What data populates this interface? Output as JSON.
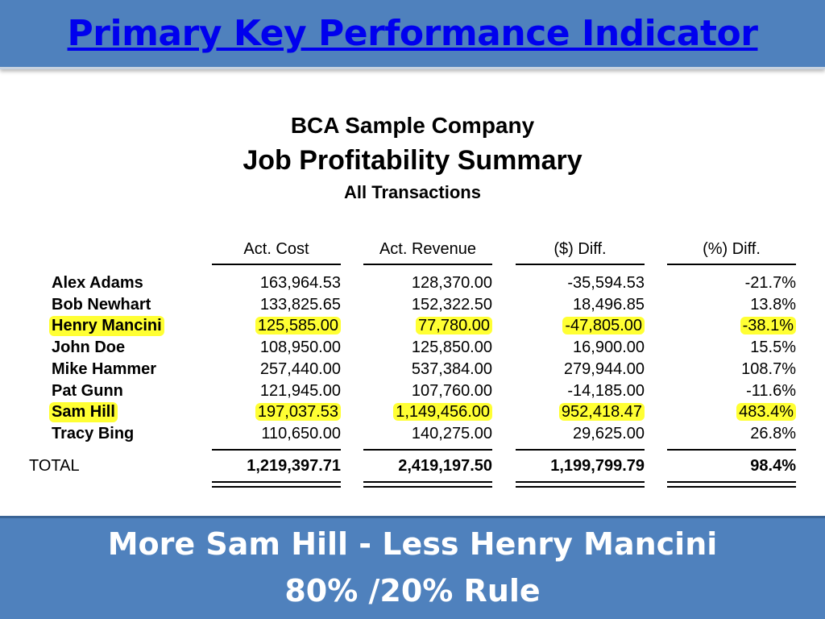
{
  "slide": {
    "title": "Primary Key Performance Indicator",
    "footer_line1": "More Sam Hill - Less Henry Mancini",
    "footer_line2": "80% /20% Rule",
    "colors": {
      "bar": "#4f81bd",
      "title": "#0000ee",
      "highlight": "#ffff33"
    }
  },
  "report": {
    "company": "BCA Sample Company",
    "title": "Job Profitability Summary",
    "scope": "All Transactions",
    "columns": [
      "Act. Cost",
      "Act. Revenue",
      "($) Diff.",
      "(%) Diff."
    ],
    "rows": [
      {
        "name": "Alex Adams",
        "cost": "163,964.53",
        "revenue": "128,370.00",
        "diff": "-35,594.53",
        "pct": "-21.7%",
        "highlighted": false
      },
      {
        "name": "Bob Newhart",
        "cost": "133,825.65",
        "revenue": "152,322.50",
        "diff": "18,496.85",
        "pct": "13.8%",
        "highlighted": false
      },
      {
        "name": "Henry Mancini",
        "cost": "125,585.00",
        "revenue": "77,780.00",
        "diff": "-47,805.00",
        "pct": "-38.1%",
        "highlighted": true
      },
      {
        "name": "John Doe",
        "cost": "108,950.00",
        "revenue": "125,850.00",
        "diff": "16,900.00",
        "pct": "15.5%",
        "highlighted": false
      },
      {
        "name": "Mike Hammer",
        "cost": "257,440.00",
        "revenue": "537,384.00",
        "diff": "279,944.00",
        "pct": "108.7%",
        "highlighted": false
      },
      {
        "name": "Pat Gunn",
        "cost": "121,945.00",
        "revenue": "107,760.00",
        "diff": "-14,185.00",
        "pct": "-11.6%",
        "highlighted": false
      },
      {
        "name": "Sam Hill",
        "cost": "197,037.53",
        "revenue": "1,149,456.00",
        "diff": "952,418.47",
        "pct": "483.4%",
        "highlighted": true
      },
      {
        "name": "Tracy Bing",
        "cost": "110,650.00",
        "revenue": "140,275.00",
        "diff": "29,625.00",
        "pct": "26.8%",
        "highlighted": false
      }
    ],
    "total": {
      "label": "TOTAL",
      "cost": "1,219,397.71",
      "revenue": "2,419,197.50",
      "diff": "1,199,799.79",
      "pct": "98.4%"
    }
  }
}
